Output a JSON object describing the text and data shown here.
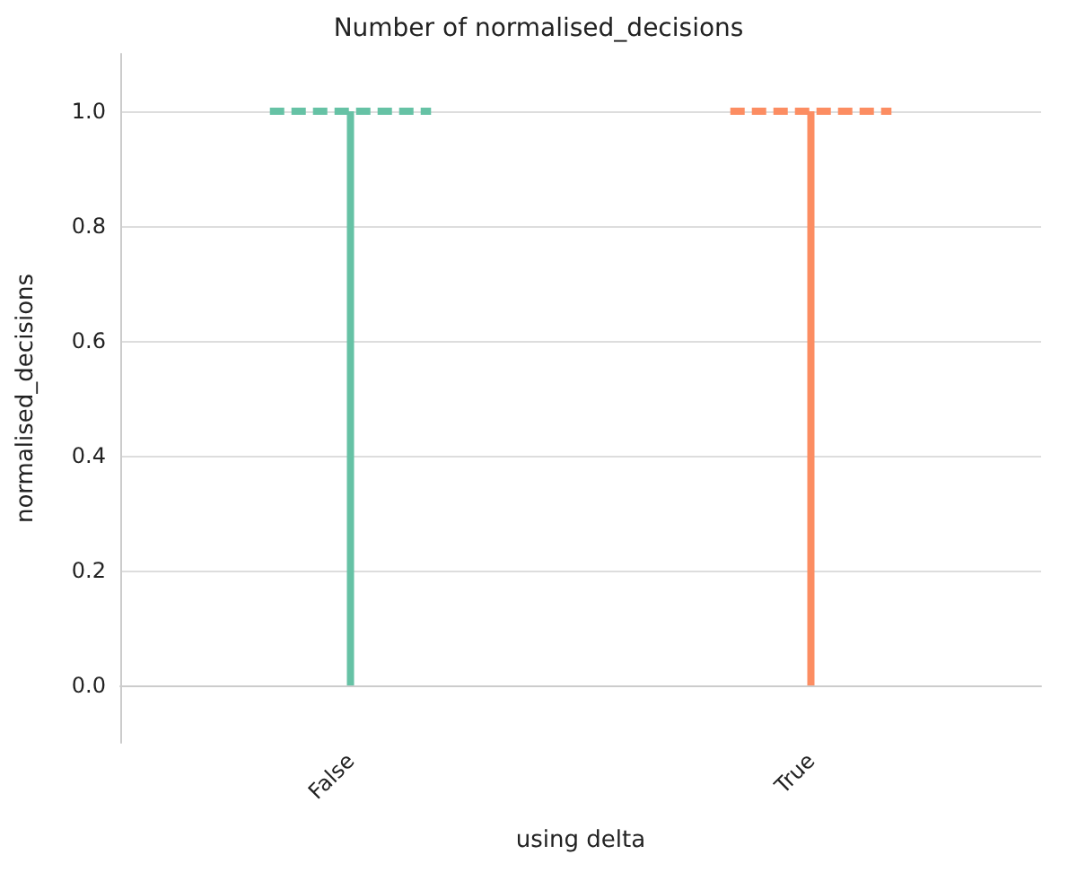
{
  "chart_data": {
    "type": "box",
    "title": "Number of normalised_decisions",
    "xlabel": "using delta",
    "ylabel": "normalised_decisions",
    "categories": [
      "False",
      "True"
    ],
    "boxes": [
      {
        "low": 0,
        "q1": 1,
        "median": 1,
        "q3": 1,
        "high": 1
      },
      {
        "low": 0,
        "q1": 1,
        "median": 1,
        "q3": 1,
        "high": 1
      }
    ],
    "colors": [
      "#66c2a5",
      "#fc8d62"
    ],
    "ylim": [
      -0.1,
      1.1
    ],
    "yticks": [
      {
        "value": 0,
        "label": "0.0"
      },
      0.2,
      0.4,
      0.6,
      0.8,
      {
        "value": 1,
        "label": "1.0"
      }
    ],
    "grid": "y"
  }
}
